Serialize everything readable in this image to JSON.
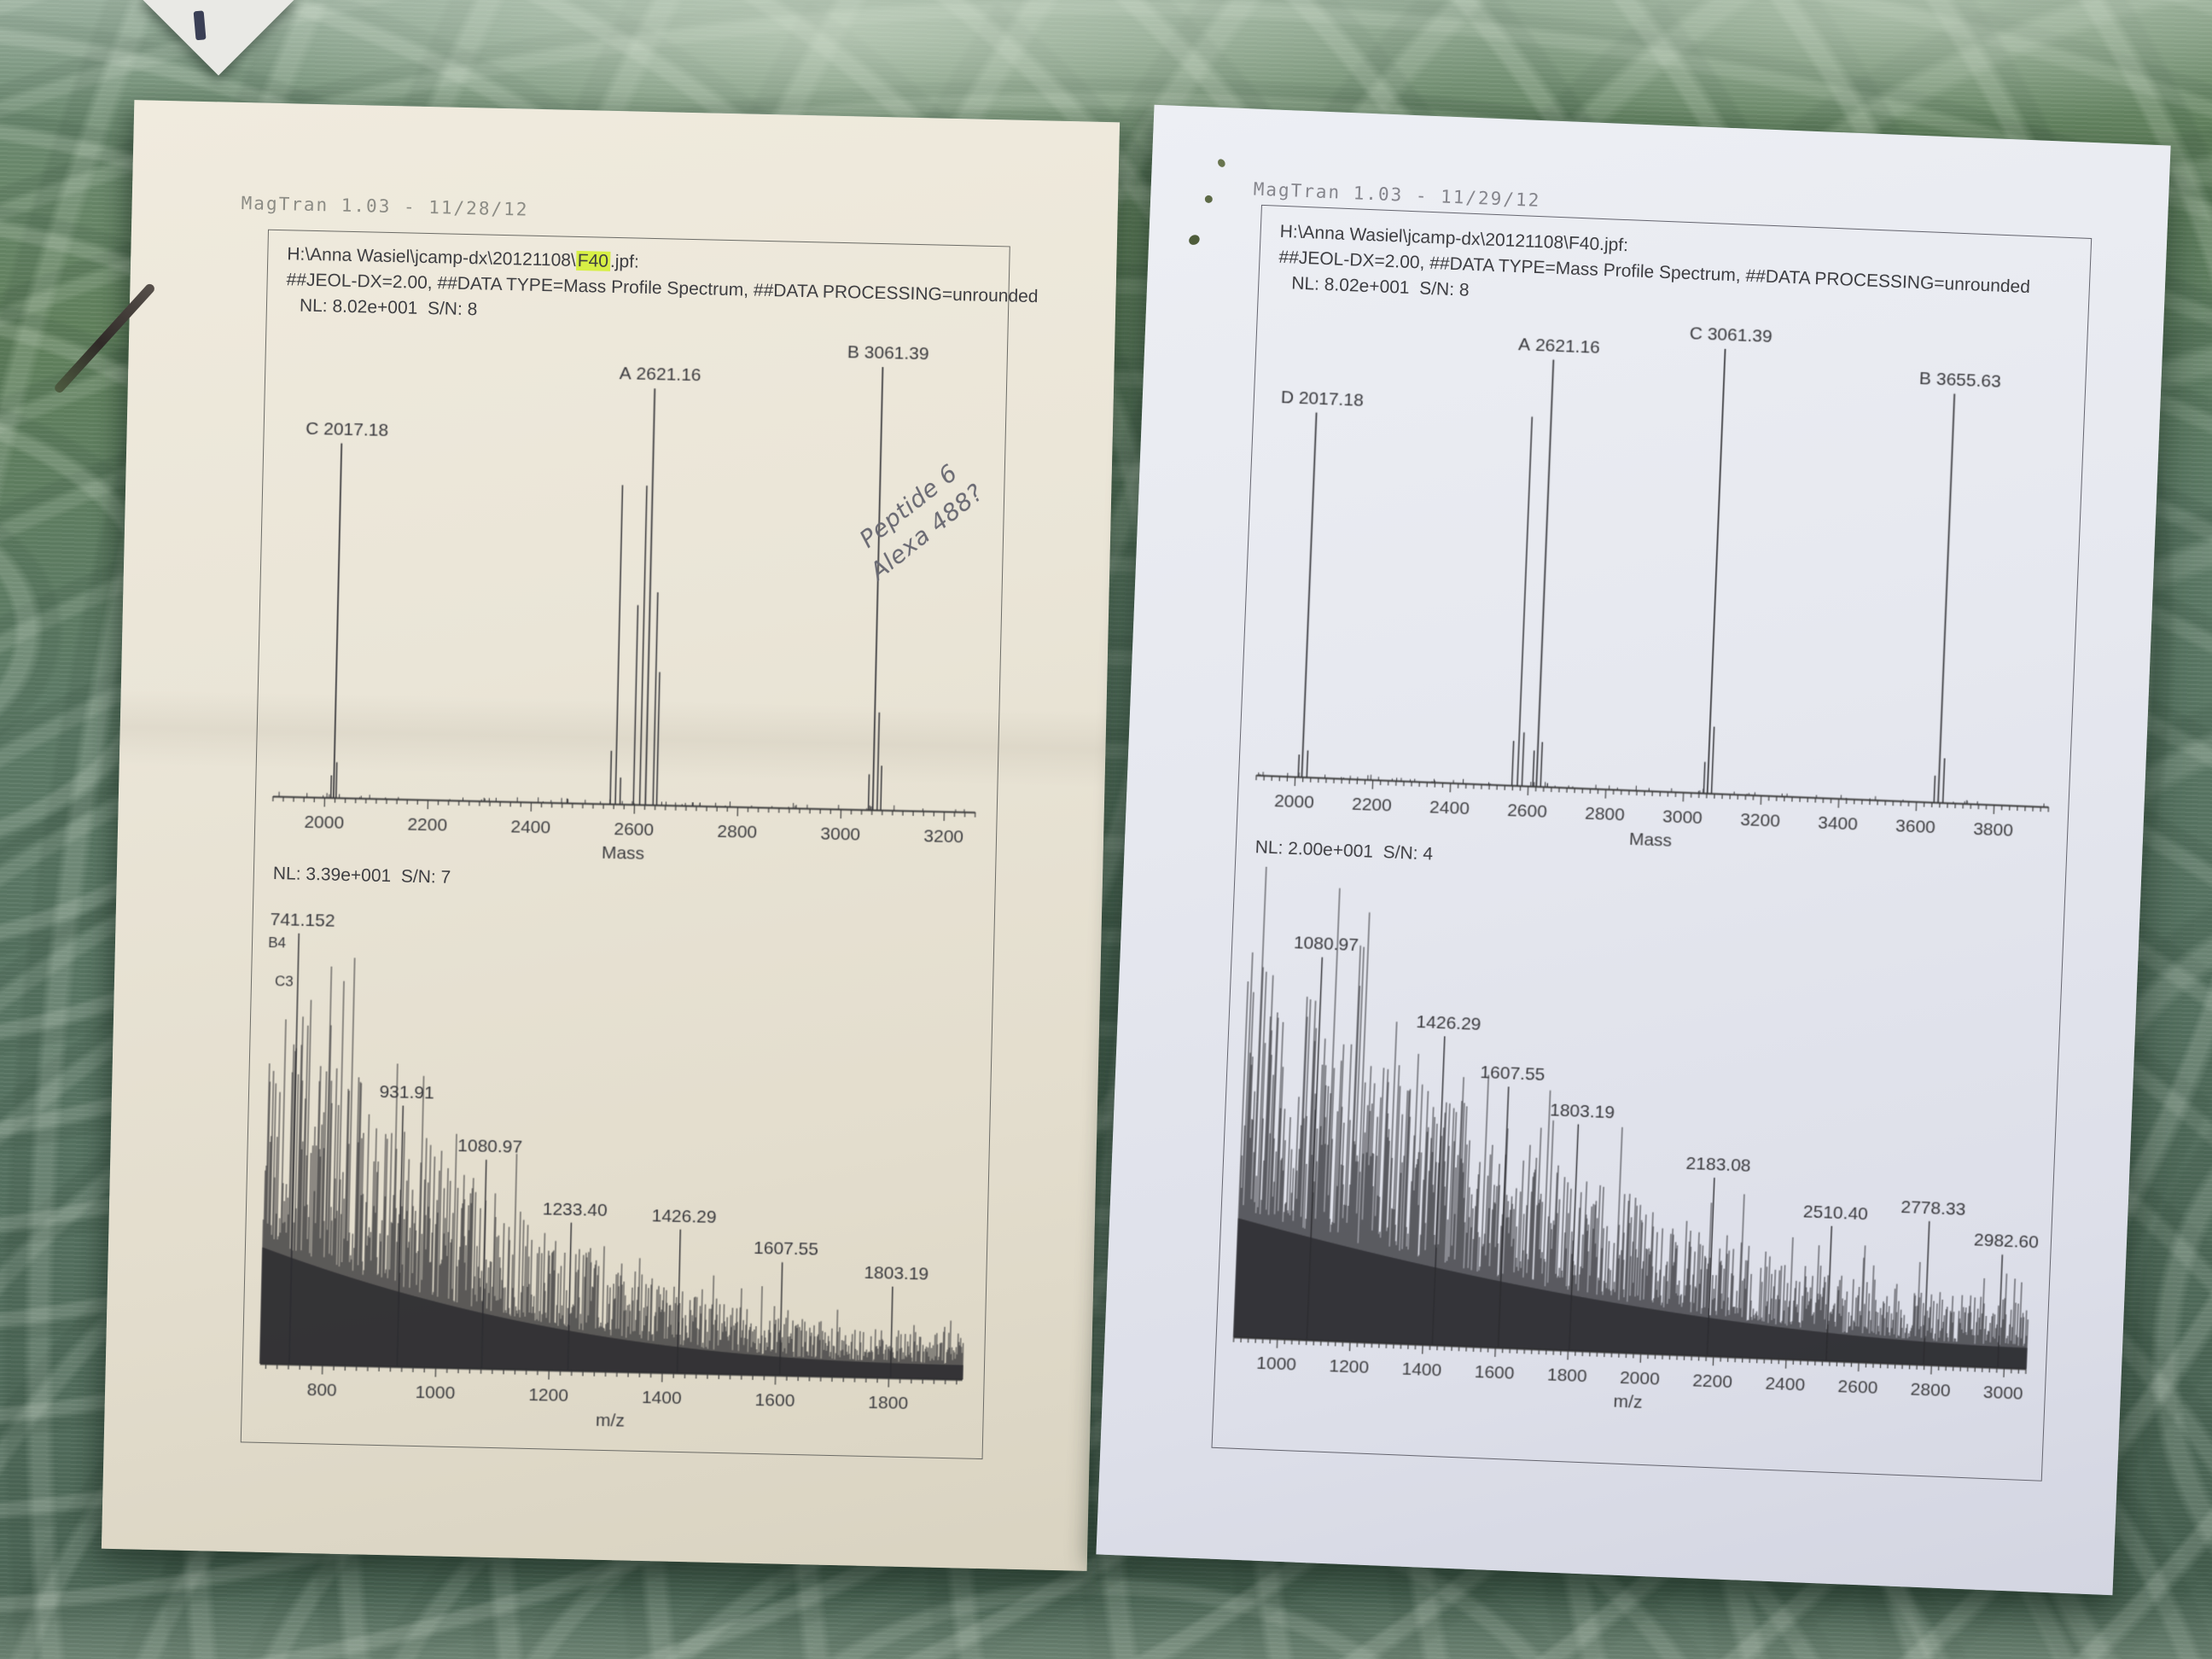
{
  "colors": {
    "tablecloth_green": "#557160",
    "tablecloth_light": "#c8d6c4",
    "left_paper": "#eae5d7",
    "right_paper": "#e6e8ef",
    "print_ink": "#3e3e42",
    "header_gray": "#8c8c85",
    "highlight_yellow": "#d7ef45"
  },
  "left_page": {
    "app_header": "MagTran 1.03 - 11/28/12",
    "file_path_prefix": "H:\\Anna Wasiel\\jcamp-dx\\20121108\\",
    "file_name_highlight": "F40",
    "file_path_suffix": ".jpf:",
    "meta_line": "##JEOL-DX=2.00, ##DATA TYPE=Mass Profile Spectrum, ##DATA PROCESSING=unrounded",
    "nl_top": "NL: 8.02e+001  S/N: 8",
    "nl_bottom": "NL: 3.39e+001  S/N: 7",
    "handwriting_line1": "Peptide 6",
    "handwriting_line2": "Alexa 488?"
  },
  "right_page": {
    "app_header": "MagTran 1.03 - 11/29/12",
    "file_path": "H:\\Anna Wasiel\\jcamp-dx\\20121108\\F40.jpf:",
    "meta_line": "##JEOL-DX=2.00, ##DATA TYPE=Mass Profile Spectrum, ##DATA PROCESSING=unrounded",
    "nl_top": "NL: 8.02e+001  S/N: 8",
    "nl_bottom": "NL: 2.00e+001  S/N: 4"
  },
  "chart_data": [
    {
      "id": "left-top",
      "type": "line",
      "subtype": "mass-spectrum-peaks",
      "xlabel": "Mass",
      "xlim": [
        1900,
        3260
      ],
      "ticks": [
        2000,
        2200,
        2400,
        2600,
        2800,
        3000,
        3200
      ],
      "minor_step": 20,
      "peaks": [
        {
          "label": "C 2017.18",
          "mz": 2017.18,
          "rel": 0.8
        },
        {
          "label": "A 2621.16",
          "mz": 2621.16,
          "rel": 0.94
        },
        {
          "label": "B 3061.39",
          "mz": 3061.39,
          "rel": 1.0
        }
      ],
      "unlabeled_peaks": [
        [
          2563,
          0.72
        ],
        [
          2598,
          0.45
        ],
        [
          2610,
          0.72
        ],
        [
          2636,
          0.48
        ],
        [
          2643,
          0.3
        ],
        [
          2012,
          0.05
        ],
        [
          2022,
          0.08
        ],
        [
          2553,
          0.12
        ],
        [
          2572,
          0.06
        ],
        [
          3053,
          0.08
        ],
        [
          3070,
          0.22
        ],
        [
          3077,
          0.1
        ]
      ],
      "seed": 11
    },
    {
      "id": "left-bottom",
      "type": "line",
      "subtype": "mass-spectrum-noise",
      "xlabel": "m/z",
      "xlim": [
        690,
        1930
      ],
      "ticks": [
        800,
        1000,
        1200,
        1400,
        1600,
        1800
      ],
      "minor_step": 20,
      "peaks": [
        {
          "label": "741.152",
          "mz": 741.152,
          "rel": 0.99
        },
        {
          "label": "931.91",
          "mz": 931.91,
          "rel": 0.6
        },
        {
          "label": "1080.97",
          "mz": 1080.97,
          "rel": 0.48
        },
        {
          "label": "1233.40",
          "mz": 1233.4,
          "rel": 0.34
        },
        {
          "label": "1426.29",
          "mz": 1426.29,
          "rel": 0.33
        },
        {
          "label": "1607.55",
          "mz": 1607.55,
          "rel": 0.26
        },
        {
          "label": "1803.19",
          "mz": 1803.19,
          "rel": 0.21
        }
      ],
      "small_labels": [
        {
          "label": "B4",
          "mz": 703,
          "rel": 0.95
        },
        {
          "label": "C3",
          "mz": 717,
          "rel": 0.86
        }
      ],
      "envelope": {
        "c1": 0.78,
        "c2": 0.11,
        "p": 2.4
      },
      "seed": 20121128
    },
    {
      "id": "right-top",
      "type": "line",
      "subtype": "mass-spectrum-peaks",
      "xlabel": "Mass",
      "xlim": [
        1900,
        3940
      ],
      "ticks": [
        2000,
        2200,
        2400,
        2600,
        2800,
        3000,
        3200,
        3400,
        3600,
        3800
      ],
      "minor_step": 20,
      "peaks": [
        {
          "label": "D 2017.18",
          "mz": 2017.18,
          "rel": 0.82
        },
        {
          "label": "A 2621.16",
          "mz": 2621.16,
          "rel": 0.96
        },
        {
          "label": "C 3061.39",
          "mz": 3061.39,
          "rel": 1.0
        },
        {
          "label": "B 3655.63",
          "mz": 3655.63,
          "rel": 0.92
        }
      ],
      "unlabeled_peaks": [
        [
          2572,
          0.83
        ],
        [
          2008,
          0.05
        ],
        [
          2030,
          0.06
        ],
        [
          2558,
          0.1
        ],
        [
          2584,
          0.12
        ],
        [
          2612,
          0.08
        ],
        [
          2632,
          0.1
        ],
        [
          3052,
          0.07
        ],
        [
          3072,
          0.15
        ],
        [
          3645,
          0.06
        ],
        [
          3668,
          0.1
        ]
      ],
      "seed": 22
    },
    {
      "id": "right-bottom",
      "type": "line",
      "subtype": "mass-spectrum-noise",
      "xlabel": "m/z",
      "xlim": [
        880,
        3060
      ],
      "ticks": [
        1000,
        1200,
        1400,
        1600,
        1800,
        2000,
        2200,
        2400,
        2600,
        2800,
        3000
      ],
      "minor_step": 20,
      "peaks": [
        {
          "label": "1080.97",
          "mz": 1080.97,
          "rel": 0.88
        },
        {
          "label": "1426.29",
          "mz": 1426.29,
          "rel": 0.71
        },
        {
          "label": "1607.55",
          "mz": 1607.55,
          "rel": 0.6
        },
        {
          "label": "1803.19",
          "mz": 1803.19,
          "rel": 0.52
        },
        {
          "label": "2183.08",
          "mz": 2183.08,
          "rel": 0.41
        },
        {
          "label": "2510.40",
          "mz": 2510.4,
          "rel": 0.31
        },
        {
          "label": "2778.33",
          "mz": 2778.33,
          "rel": 0.33
        },
        {
          "label": "2982.60",
          "mz": 2982.6,
          "rel": 0.26
        }
      ],
      "small_labels": [],
      "envelope": {
        "c1": 0.75,
        "c2": 0.16,
        "p": 1.9
      },
      "seed": 20121129
    }
  ]
}
